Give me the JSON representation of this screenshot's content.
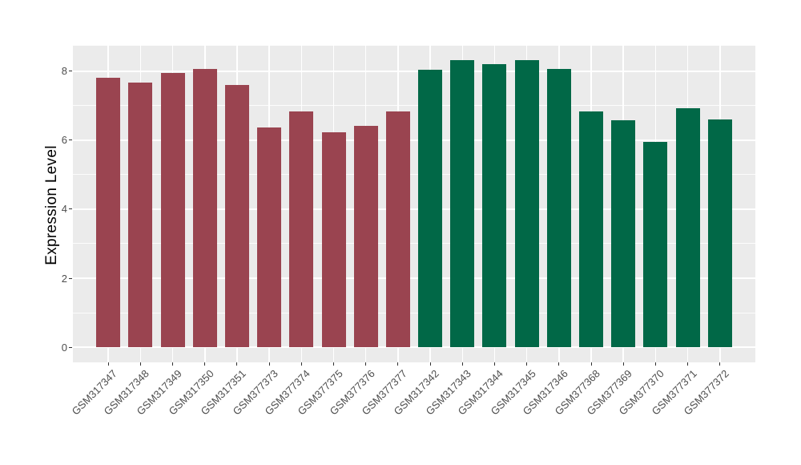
{
  "chart_data": {
    "type": "bar",
    "title": "",
    "xlabel": "",
    "ylabel": "Expression Level",
    "categories": [
      "GSM317347",
      "GSM317348",
      "GSM317349",
      "GSM317350",
      "GSM317351",
      "GSM377373",
      "GSM377374",
      "GSM377375",
      "GSM377376",
      "GSM377377",
      "GSM317342",
      "GSM317343",
      "GSM317344",
      "GSM317345",
      "GSM317346",
      "GSM377368",
      "GSM377369",
      "GSM377370",
      "GSM377371",
      "GSM377372"
    ],
    "values": [
      7.81,
      7.68,
      7.96,
      8.07,
      7.6,
      6.36,
      6.84,
      6.24,
      6.42,
      6.84,
      8.05,
      8.33,
      8.2,
      8.32,
      8.06,
      6.84,
      6.59,
      5.96,
      6.93,
      6.61
    ],
    "bar_colors": [
      "#9A4450",
      "#9A4450",
      "#9A4450",
      "#9A4450",
      "#9A4450",
      "#9A4450",
      "#9A4450",
      "#9A4450",
      "#9A4450",
      "#9A4450",
      "#016847",
      "#016847",
      "#016847",
      "#016847",
      "#016847",
      "#016847",
      "#016847",
      "#016847",
      "#016847",
      "#016847"
    ],
    "group_colors": {
      "red_group": "#9A4450",
      "green_group": "#016847"
    },
    "yticks": [
      0,
      2,
      4,
      6,
      8
    ],
    "yticks_minor": [
      1,
      3,
      5,
      7
    ],
    "ylim": [
      -0.44,
      8.74
    ],
    "x_label_angle": 45,
    "legend": "none",
    "grid": true,
    "panel_bg": "#EBEBEB",
    "grid_major_color": "#FFFFFF",
    "grid_minor_color": "#FFFFFF",
    "axis_text_color": "#4D4D4D",
    "axis_title_color": "#000000"
  }
}
